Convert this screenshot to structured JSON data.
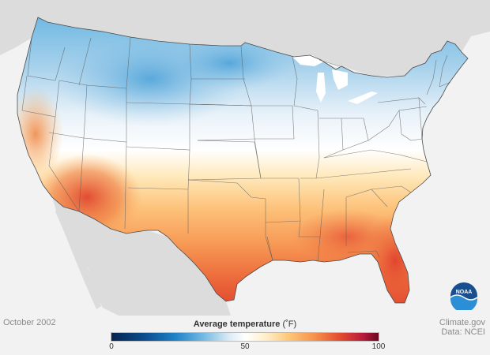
{
  "map": {
    "period": "October 2002",
    "legend": {
      "title": "Average temperature",
      "unit": "(˚F)",
      "min_label": "0",
      "mid_label": "50",
      "max_label": "100",
      "range": [
        0,
        100
      ]
    },
    "credit": {
      "line1": "Climate.gov",
      "line2": "Data: NCEI"
    },
    "logo": {
      "text": "NOAA",
      "icon": "noaa-logo-icon"
    },
    "colors": {
      "cold": "#1f82c9",
      "neutral": "#ffffff",
      "warm": "#f6924a",
      "hot": "#e1492f",
      "background": "#f2f2f2",
      "land_outside": "#d6d6d6",
      "water": "#ffffff"
    }
  }
}
